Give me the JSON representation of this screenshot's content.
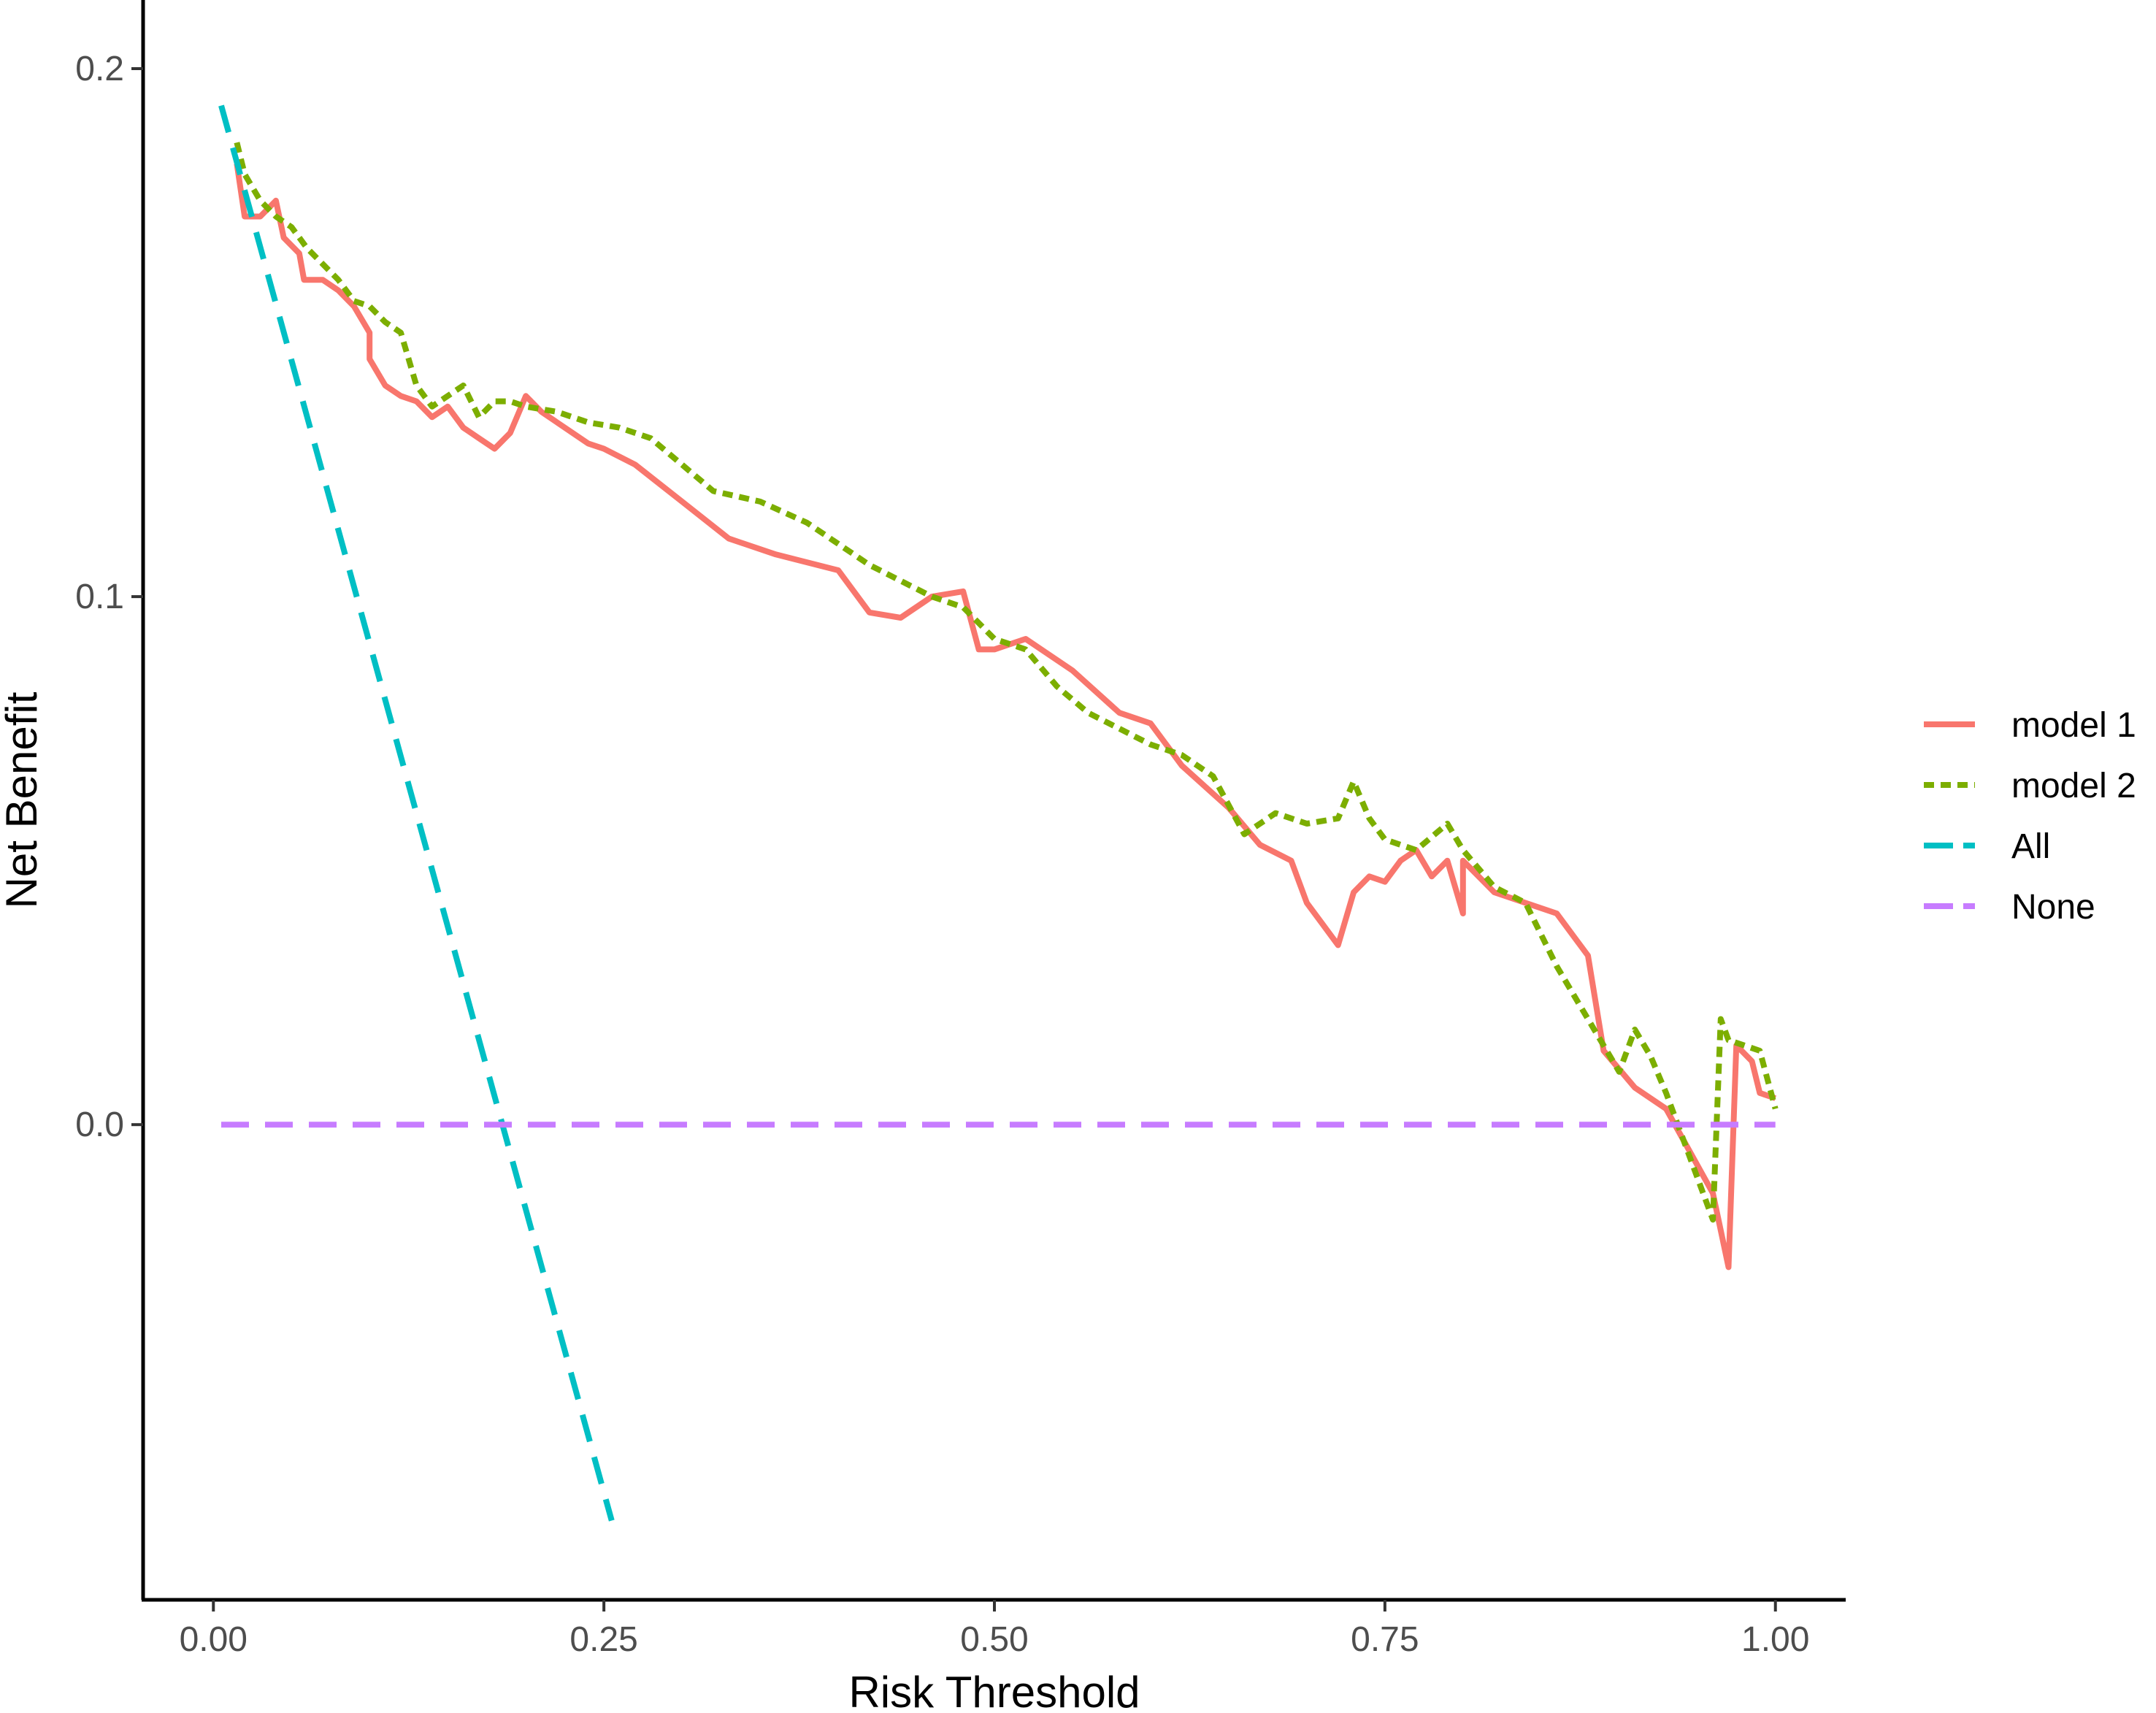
{
  "chart_data": {
    "type": "line",
    "title": "",
    "xlabel": "Risk Threshold",
    "ylabel": "Net Benefit",
    "xlim": [
      -0.045,
      1.045
    ],
    "ylim": [
      -0.09,
      0.213
    ],
    "x_ticks": [
      {
        "value": 0.0,
        "label": "0.00"
      },
      {
        "value": 0.25,
        "label": "0.25"
      },
      {
        "value": 0.5,
        "label": "0.50"
      },
      {
        "value": 0.75,
        "label": "0.75"
      },
      {
        "value": 1.0,
        "label": "1.00"
      }
    ],
    "y_ticks": [
      {
        "value": 0.0,
        "label": "0.0"
      },
      {
        "value": 0.1,
        "label": "0.1"
      },
      {
        "value": 0.2,
        "label": "0.2"
      }
    ],
    "grid": false,
    "legend_position": "right",
    "series": [
      {
        "name": "model 1",
        "color": "#F8766D",
        "dash": "solid",
        "points": [
          [
            0.015,
            0.182
          ],
          [
            0.02,
            0.172
          ],
          [
            0.03,
            0.172
          ],
          [
            0.04,
            0.175
          ],
          [
            0.045,
            0.168
          ],
          [
            0.055,
            0.165
          ],
          [
            0.058,
            0.16
          ],
          [
            0.07,
            0.16
          ],
          [
            0.08,
            0.158
          ],
          [
            0.09,
            0.155
          ],
          [
            0.1,
            0.15
          ],
          [
            0.1,
            0.145
          ],
          [
            0.11,
            0.14
          ],
          [
            0.12,
            0.138
          ],
          [
            0.13,
            0.137
          ],
          [
            0.14,
            0.134
          ],
          [
            0.15,
            0.136
          ],
          [
            0.16,
            0.132
          ],
          [
            0.17,
            0.13
          ],
          [
            0.18,
            0.128
          ],
          [
            0.19,
            0.131
          ],
          [
            0.2,
            0.138
          ],
          [
            0.21,
            0.135
          ],
          [
            0.22,
            0.133
          ],
          [
            0.23,
            0.131
          ],
          [
            0.24,
            0.129
          ],
          [
            0.25,
            0.128
          ],
          [
            0.27,
            0.125
          ],
          [
            0.3,
            0.118
          ],
          [
            0.33,
            0.111
          ],
          [
            0.36,
            0.108
          ],
          [
            0.4,
            0.105
          ],
          [
            0.42,
            0.097
          ],
          [
            0.44,
            0.096
          ],
          [
            0.46,
            0.1
          ],
          [
            0.48,
            0.101
          ],
          [
            0.49,
            0.09
          ],
          [
            0.5,
            0.09
          ],
          [
            0.52,
            0.092
          ],
          [
            0.55,
            0.086
          ],
          [
            0.58,
            0.078
          ],
          [
            0.6,
            0.076
          ],
          [
            0.62,
            0.068
          ],
          [
            0.65,
            0.06
          ],
          [
            0.67,
            0.053
          ],
          [
            0.69,
            0.05
          ],
          [
            0.7,
            0.042
          ],
          [
            0.71,
            0.038
          ],
          [
            0.72,
            0.034
          ],
          [
            0.73,
            0.044
          ],
          [
            0.74,
            0.047
          ],
          [
            0.75,
            0.046
          ],
          [
            0.76,
            0.05
          ],
          [
            0.77,
            0.052
          ],
          [
            0.78,
            0.047
          ],
          [
            0.79,
            0.05
          ],
          [
            0.8,
            0.04
          ],
          [
            0.8,
            0.05
          ],
          [
            0.82,
            0.044
          ],
          [
            0.86,
            0.04
          ],
          [
            0.88,
            0.032
          ],
          [
            0.89,
            0.014
          ],
          [
            0.91,
            0.007
          ],
          [
            0.93,
            0.003
          ],
          [
            0.96,
            -0.013
          ],
          [
            0.97,
            -0.027
          ],
          [
            0.975,
            0.015
          ],
          [
            0.985,
            0.012
          ],
          [
            0.99,
            0.006
          ],
          [
            1.0,
            0.005
          ]
        ]
      },
      {
        "name": "model 2",
        "color": "#7CAE00",
        "dash": "dotted",
        "points": [
          [
            0.015,
            0.186
          ],
          [
            0.02,
            0.18
          ],
          [
            0.03,
            0.175
          ],
          [
            0.04,
            0.172
          ],
          [
            0.05,
            0.17
          ],
          [
            0.06,
            0.166
          ],
          [
            0.07,
            0.163
          ],
          [
            0.08,
            0.16
          ],
          [
            0.09,
            0.156
          ],
          [
            0.1,
            0.155
          ],
          [
            0.11,
            0.152
          ],
          [
            0.12,
            0.15
          ],
          [
            0.13,
            0.14
          ],
          [
            0.14,
            0.136
          ],
          [
            0.15,
            0.138
          ],
          [
            0.16,
            0.14
          ],
          [
            0.17,
            0.134
          ],
          [
            0.18,
            0.137
          ],
          [
            0.19,
            0.137
          ],
          [
            0.2,
            0.136
          ],
          [
            0.22,
            0.135
          ],
          [
            0.24,
            0.133
          ],
          [
            0.26,
            0.132
          ],
          [
            0.28,
            0.13
          ],
          [
            0.3,
            0.125
          ],
          [
            0.32,
            0.12
          ],
          [
            0.35,
            0.118
          ],
          [
            0.38,
            0.114
          ],
          [
            0.4,
            0.11
          ],
          [
            0.42,
            0.106
          ],
          [
            0.44,
            0.103
          ],
          [
            0.46,
            0.1
          ],
          [
            0.48,
            0.098
          ],
          [
            0.5,
            0.092
          ],
          [
            0.52,
            0.09
          ],
          [
            0.54,
            0.083
          ],
          [
            0.56,
            0.078
          ],
          [
            0.58,
            0.075
          ],
          [
            0.6,
            0.072
          ],
          [
            0.62,
            0.07
          ],
          [
            0.64,
            0.066
          ],
          [
            0.66,
            0.055
          ],
          [
            0.68,
            0.059
          ],
          [
            0.7,
            0.057
          ],
          [
            0.72,
            0.058
          ],
          [
            0.73,
            0.065
          ],
          [
            0.74,
            0.058
          ],
          [
            0.75,
            0.054
          ],
          [
            0.77,
            0.052
          ],
          [
            0.79,
            0.057
          ],
          [
            0.8,
            0.052
          ],
          [
            0.82,
            0.045
          ],
          [
            0.84,
            0.042
          ],
          [
            0.86,
            0.03
          ],
          [
            0.88,
            0.02
          ],
          [
            0.9,
            0.01
          ],
          [
            0.91,
            0.018
          ],
          [
            0.92,
            0.013
          ],
          [
            0.93,
            0.006
          ],
          [
            0.96,
            -0.018
          ],
          [
            0.965,
            0.02
          ],
          [
            0.97,
            0.016
          ],
          [
            0.98,
            0.015
          ],
          [
            0.99,
            0.014
          ],
          [
            1.0,
            0.003
          ]
        ]
      },
      {
        "name": "All",
        "color": "#00BFC4",
        "dash": "dashed",
        "points": [
          [
            0.005,
            0.193
          ],
          [
            0.255,
            -0.075
          ]
        ]
      },
      {
        "name": "None",
        "color": "#C77CFF",
        "dash": "dashed",
        "points": [
          [
            0.005,
            0.0
          ],
          [
            1.0,
            0.0
          ]
        ]
      }
    ]
  }
}
